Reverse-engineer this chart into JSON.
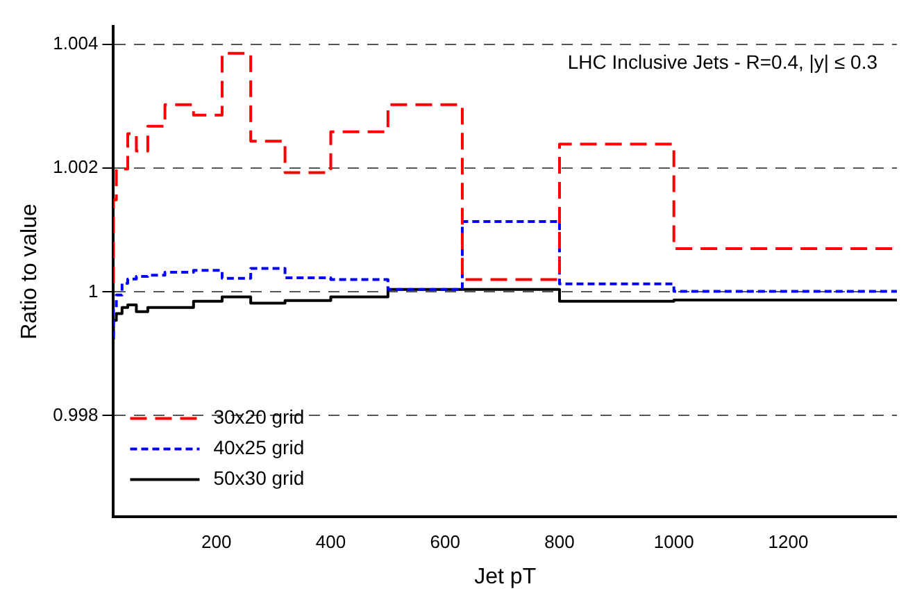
{
  "chart_data": {
    "type": "step",
    "xlabel": "Jet pT",
    "ylabel": "Ratio to value",
    "annotations": [
      "LHC Inclusive Jets - R=0.4, |y| ≤ 0.3"
    ],
    "x": [
      20,
      25,
      35,
      45,
      60,
      80,
      110,
      160,
      210,
      260,
      320,
      400,
      500,
      630,
      800,
      1000,
      1220,
      1390
    ],
    "series": [
      {
        "name": "30x20 grid",
        "color": "#ff0000",
        "line_style": "dashed",
        "values": [
          1.00014,
          1.00149,
          1.00199,
          1.00199,
          1.00256,
          1.00228,
          1.00268,
          1.00303,
          1.00286,
          1.00386,
          1.00244,
          1.00193,
          1.00259,
          1.00303,
          1.0002,
          1.00239,
          1.0007,
          1.0007
        ]
      },
      {
        "name": "40x25 grid",
        "color": "#0000ff",
        "line_style": "dotted",
        "values": [
          0.99926,
          0.99975,
          0.99995,
          1.00014,
          1.00021,
          1.00025,
          1.00027,
          1.00032,
          1.00035,
          1.00022,
          1.00038,
          1.00023,
          1.0002,
          1.00004,
          1.00114,
          1.00013,
          1.00001,
          1.00001
        ]
      },
      {
        "name": "50x30 grid",
        "color": "#000000",
        "line_style": "solid",
        "values": [
          0.99923,
          0.99954,
          0.99965,
          0.99975,
          0.99979,
          0.99968,
          0.99975,
          0.99975,
          0.99985,
          0.99992,
          0.99982,
          0.99986,
          0.99992,
          1.00004,
          1.00004,
          0.99985,
          0.99987,
          0.99987
        ]
      }
    ],
    "xlim": [
      20,
      1390
    ],
    "ylim": [
      0.99636,
      1.0043
    ],
    "xticks": [
      200,
      400,
      600,
      800,
      1000,
      1200
    ],
    "yticks": [
      0.998,
      1,
      1.002,
      1.004
    ],
    "grid": "y",
    "legend": "bottom left"
  }
}
